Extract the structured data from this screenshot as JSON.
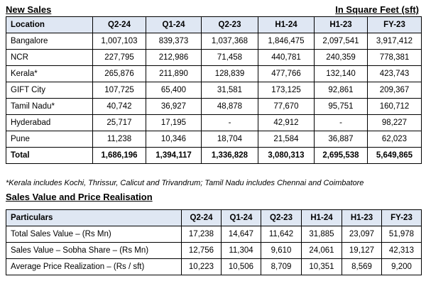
{
  "new_sales": {
    "title": "New Sales",
    "unit_note": "In Square Feet (sft)",
    "headers": [
      "Location",
      "Q2-24",
      "Q1-24",
      "Q2-23",
      "H1-24",
      "H1-23",
      "FY-23"
    ],
    "rows": [
      [
        "Bangalore",
        "1,007,103",
        "839,373",
        "1,037,368",
        "1,846,475",
        "2,097,541",
        "3,917,412"
      ],
      [
        "NCR",
        "227,795",
        "212,986",
        "71,458",
        "440,781",
        "240,359",
        "778,381"
      ],
      [
        "Kerala*",
        "265,876",
        "211,890",
        "128,839",
        "477,766",
        "132,140",
        "423,743"
      ],
      [
        "GIFT City",
        "107,725",
        "65,400",
        "31,581",
        "173,125",
        "92,861",
        "209,367"
      ],
      [
        "Tamil Nadu*",
        "40,742",
        "36,927",
        "48,878",
        "77,670",
        "95,751",
        "160,712"
      ],
      [
        "Hyderabad",
        "25,717",
        "17,195",
        "-",
        "42,912",
        "-",
        "98,227"
      ],
      [
        "Pune",
        "11,238",
        "10,346",
        "18,704",
        "21,584",
        "36,887",
        "62,023"
      ],
      [
        "Total",
        "1,686,196",
        "1,394,117",
        "1,336,828",
        "3,080,313",
        "2,695,538",
        "5,649,865"
      ]
    ],
    "footnote": "*Kerala includes Kochi, Thrissur, Calicut and Trivandrum; Tamil Nadu includes Chennai and Coimbatore"
  },
  "sales_value": {
    "title": "Sales Value and Price Realisation",
    "headers": [
      "Particulars",
      "Q2-24",
      "Q1-24",
      "Q2-23",
      "H1-24",
      "H1-23",
      "FY-23"
    ],
    "rows": [
      [
        "Total Sales Value – (Rs Mn)",
        "17,238",
        "14,647",
        "11,642",
        "31,885",
        "23,097",
        "51,978"
      ],
      [
        "Sales Value – Sobha Share – (Rs Mn)",
        "12,756",
        "11,304",
        "9,610",
        "24,061",
        "19,127",
        "42,313"
      ],
      [
        "Average Price Realization – (Rs / sft)",
        "10,223",
        "10,506",
        "8,709",
        "10,351",
        "8,569",
        "9,200"
      ]
    ]
  }
}
